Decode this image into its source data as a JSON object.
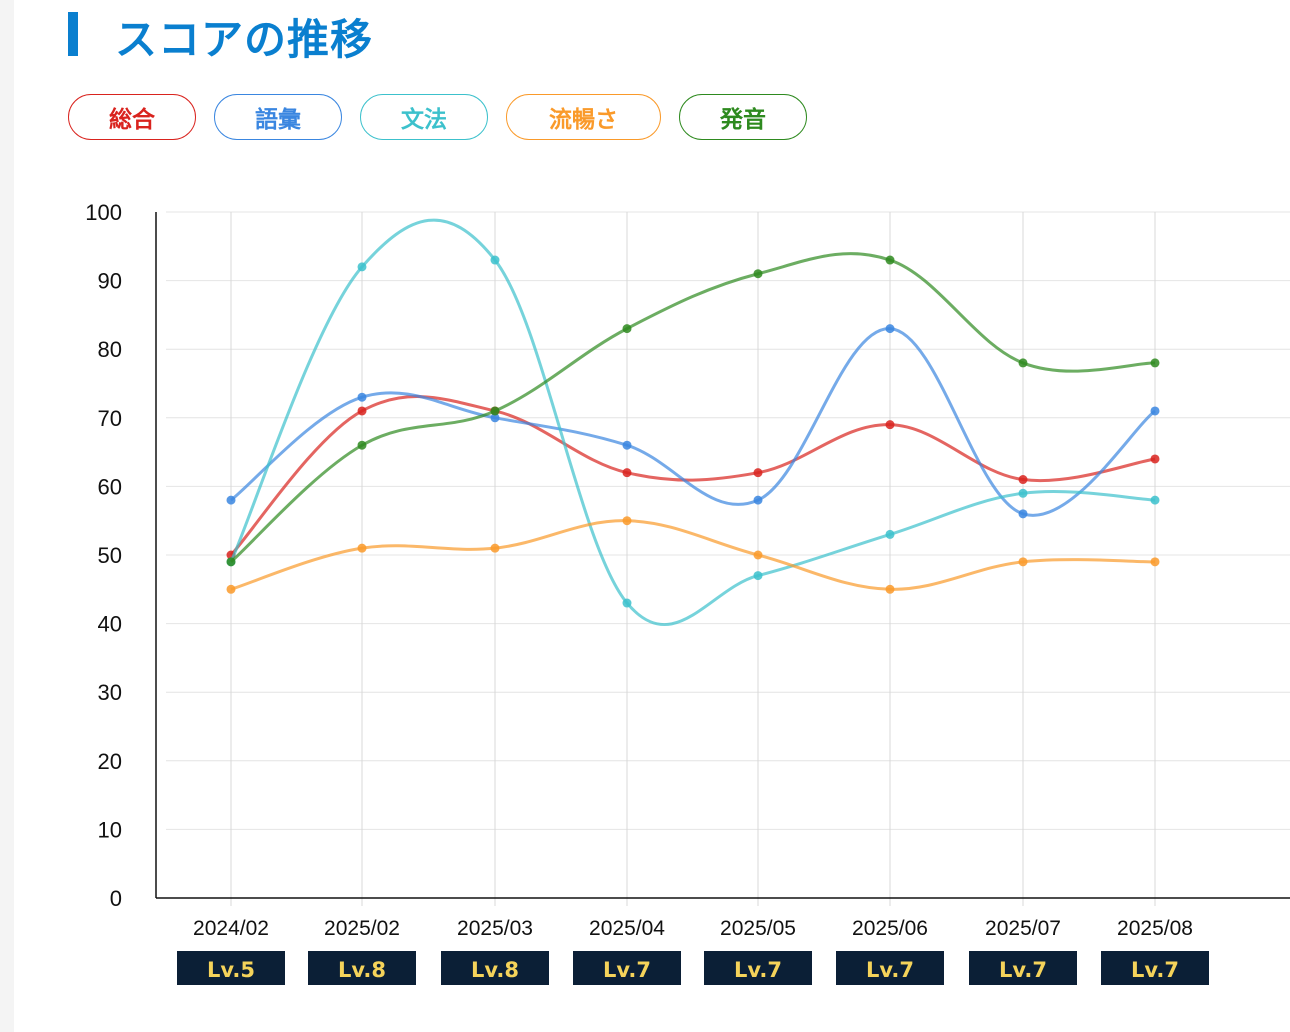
{
  "title": "スコアの推移",
  "chart_data": {
    "type": "line",
    "title": "スコアの推移",
    "categories": [
      "2024/02",
      "2025/02",
      "2025/03",
      "2025/04",
      "2025/05",
      "2025/06",
      "2025/07",
      "2025/08"
    ],
    "levels": [
      "Lv.5",
      "Lv.8",
      "Lv.8",
      "Lv.7",
      "Lv.7",
      "Lv.7",
      "Lv.7",
      "Lv.7"
    ],
    "ylim": [
      0,
      100
    ],
    "yticks": [
      0,
      10,
      20,
      30,
      40,
      50,
      60,
      70,
      80,
      90,
      100
    ],
    "grid": true,
    "legend_placement": "top-left",
    "series": [
      {
        "name": "総合",
        "color": "#d9231e",
        "values": [
          50,
          71,
          71,
          62,
          62,
          69,
          61,
          64
        ]
      },
      {
        "name": "語彙",
        "color": "#3a86e0",
        "values": [
          58,
          73,
          70,
          66,
          58,
          83,
          56,
          71
        ]
      },
      {
        "name": "文法",
        "color": "#3cc1cc",
        "values": [
          49,
          92,
          93,
          43,
          47,
          53,
          59,
          58
        ]
      },
      {
        "name": "流暢さ",
        "color": "#fa9a2a",
        "values": [
          45,
          51,
          51,
          55,
          50,
          45,
          49,
          49
        ]
      },
      {
        "name": "発音",
        "color": "#2e8a1f",
        "values": [
          49,
          66,
          71,
          83,
          91,
          93,
          78,
          78
        ]
      }
    ]
  }
}
